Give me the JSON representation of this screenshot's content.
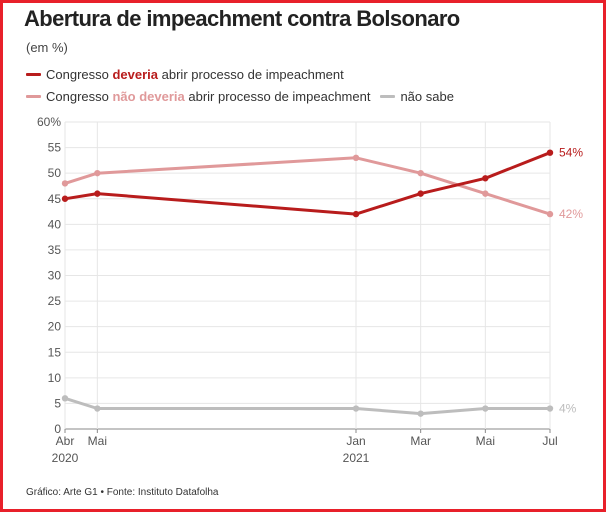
{
  "title": "Abertura de impeachment contra Bolsonaro",
  "subtitle": "(em %)",
  "legend": [
    {
      "prefix": "Congresso ",
      "em": "deveria",
      "suffix": " abrir processo de impeachment",
      "color": "#b81c1c"
    },
    {
      "prefix": "Congresso ",
      "em": "não deveria",
      "suffix": " abrir processo de impeachment",
      "color": "#e0999a"
    },
    {
      "prefix": "",
      "em": "",
      "suffix": "não sabe",
      "color": "#bdbdbd"
    }
  ],
  "source": "Gráfico: Arte G1 • Fonte: Instituto Datafolha",
  "chart_data": {
    "type": "line",
    "x": [
      "2020-04",
      "2020-05",
      "2021-01",
      "2021-03",
      "2021-05",
      "2021-07"
    ],
    "x_tick_labels": [
      "Abr",
      "Mai",
      "Jan",
      "Mar",
      "Mai",
      "Jul"
    ],
    "x_year_labels": [
      {
        "at": "2020-04",
        "text": "2020"
      },
      {
        "at": "2021-01",
        "text": "2021"
      }
    ],
    "ylim": [
      0,
      60
    ],
    "y_ticks": [
      0,
      5,
      10,
      15,
      20,
      25,
      30,
      35,
      40,
      45,
      50,
      55,
      60
    ],
    "y_tick_labels": [
      "0",
      "5",
      "10",
      "15",
      "20",
      "25",
      "30",
      "35",
      "40",
      "45",
      "50",
      "55",
      "60%"
    ],
    "grid": true,
    "series": [
      {
        "name": "Congresso deveria abrir processo de impeachment",
        "values": [
          45,
          46,
          42,
          46,
          49,
          54
        ],
        "color": "#b81c1c",
        "end_label": "54%"
      },
      {
        "name": "Congresso não deveria abrir processo de impeachment",
        "values": [
          48,
          50,
          53,
          50,
          46,
          42
        ],
        "color": "#e0999a",
        "end_label": "42%"
      },
      {
        "name": "não sabe",
        "values": [
          6,
          4,
          4,
          3,
          4,
          4
        ],
        "color": "#bdbdbd",
        "end_label": "4%"
      }
    ]
  }
}
